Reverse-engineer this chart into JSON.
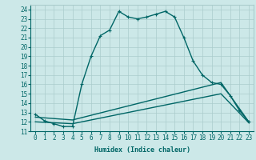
{
  "xlabel": "Humidex (Indice chaleur)",
  "bg_color": "#cce8e8",
  "grid_color": "#aacccc",
  "line_color": "#006666",
  "xlim": [
    -0.5,
    23.5
  ],
  "ylim": [
    11,
    24.5
  ],
  "xticks": [
    0,
    1,
    2,
    3,
    4,
    5,
    6,
    7,
    8,
    9,
    10,
    11,
    12,
    13,
    14,
    15,
    16,
    17,
    18,
    19,
    20,
    21,
    22,
    23
  ],
  "yticks": [
    11,
    12,
    13,
    14,
    15,
    16,
    17,
    18,
    19,
    20,
    21,
    22,
    23,
    24
  ],
  "line1_x": [
    0,
    1,
    2,
    3,
    4,
    5,
    6,
    7,
    8,
    9,
    10,
    11,
    12,
    13,
    14,
    15,
    16,
    17,
    18,
    19,
    20,
    21,
    22,
    23
  ],
  "line1_y": [
    12.8,
    12.1,
    11.8,
    11.5,
    11.5,
    16.0,
    19.0,
    21.2,
    21.8,
    23.8,
    23.2,
    23.0,
    23.2,
    23.5,
    23.8,
    23.2,
    21.0,
    18.5,
    17.0,
    16.2,
    16.0,
    14.8,
    13.2,
    12.0
  ],
  "line2_x": [
    0,
    4,
    20,
    23
  ],
  "line2_y": [
    12.5,
    12.2,
    16.2,
    12.0
  ],
  "line3_x": [
    0,
    4,
    20,
    23
  ],
  "line3_y": [
    12.0,
    11.8,
    15.0,
    11.9
  ]
}
